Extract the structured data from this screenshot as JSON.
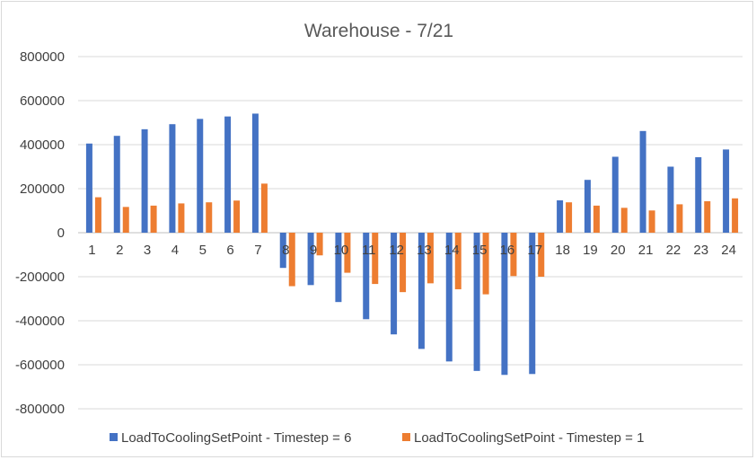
{
  "chart_data": {
    "type": "bar",
    "title": "Warehouse - 7/21",
    "xlabel": "",
    "ylabel": "",
    "categories": [
      "1",
      "2",
      "3",
      "4",
      "5",
      "6",
      "7",
      "8",
      "9",
      "10",
      "11",
      "12",
      "13",
      "14",
      "15",
      "16",
      "17",
      "18",
      "19",
      "20",
      "21",
      "22",
      "23",
      "24"
    ],
    "series": [
      {
        "name": "LoadToCoolingSetPoint - Timestep = 6",
        "color": "#4472c4",
        "values": [
          405000,
          440000,
          470000,
          493000,
          517000,
          528000,
          541000,
          -160000,
          -238000,
          -315000,
          -393000,
          -462000,
          -528000,
          -585000,
          -628000,
          -646000,
          -642000,
          147000,
          240000,
          345000,
          462000,
          300000,
          343000,
          378000
        ]
      },
      {
        "name": "LoadToCoolingSetPoint - Timestep = 1",
        "color": "#ed7d31",
        "values": [
          161000,
          117000,
          123000,
          133000,
          138000,
          146000,
          223000,
          -243000,
          -103000,
          -182000,
          -233000,
          -270000,
          -230000,
          -257000,
          -280000,
          -197000,
          -200000,
          138000,
          123000,
          113000,
          101000,
          129000,
          143000,
          156000
        ]
      }
    ],
    "ylim": [
      -800000,
      800000
    ],
    "yticks": [
      "800000",
      "600000",
      "400000",
      "200000",
      "0",
      "-200000",
      "-400000",
      "-600000",
      "-800000"
    ],
    "ytick_values": [
      800000,
      600000,
      400000,
      200000,
      0,
      -200000,
      -400000,
      -600000,
      -800000
    ],
    "grid": true,
    "legend_position": "bottom"
  }
}
